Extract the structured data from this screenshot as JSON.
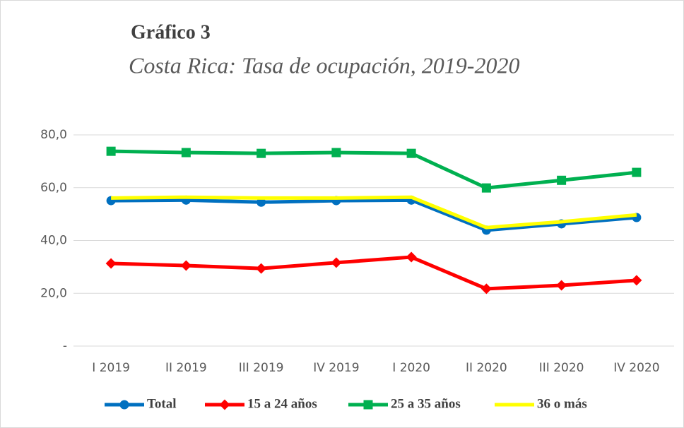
{
  "chart_data": {
    "type": "line",
    "title": "Gráfico 3",
    "subtitle": "Costa Rica: Tasa de ocupación, 2019-2020",
    "categories": [
      "I 2019",
      "II 2019",
      "III 2019",
      "IV 2019",
      "I 2020",
      "II 2020",
      "III 2020",
      "IV 2020"
    ],
    "series": [
      {
        "name": "Total",
        "color": "#0070c0",
        "marker": "circle",
        "values": [
          55.1,
          55.3,
          54.5,
          55.1,
          55.3,
          43.9,
          46.3,
          48.7
        ]
      },
      {
        "name": "15 a 24 años",
        "color": "#ff0000",
        "marker": "diamond",
        "values": [
          31.3,
          30.5,
          29.4,
          31.6,
          33.7,
          21.7,
          23.0,
          24.9
        ]
      },
      {
        "name": "25 a 35 años",
        "color": "#00b050",
        "marker": "square",
        "values": [
          73.8,
          73.3,
          73.0,
          73.3,
          73.0,
          59.9,
          62.8,
          65.8
        ]
      },
      {
        "name": "36 o más",
        "color": "#ffff00",
        "marker": "none",
        "values": [
          56.1,
          56.4,
          56.1,
          56.1,
          56.4,
          44.9,
          47.1,
          49.7
        ]
      }
    ],
    "ylim": [
      0,
      80
    ],
    "yticks": [
      {
        "value": 0,
        "label": "-"
      },
      {
        "value": 20,
        "label": "20,0"
      },
      {
        "value": 40,
        "label": "40,0"
      },
      {
        "value": 60,
        "label": "60,0"
      },
      {
        "value": 80,
        "label": "80,0"
      }
    ],
    "grid": true,
    "legend": "bottom"
  }
}
